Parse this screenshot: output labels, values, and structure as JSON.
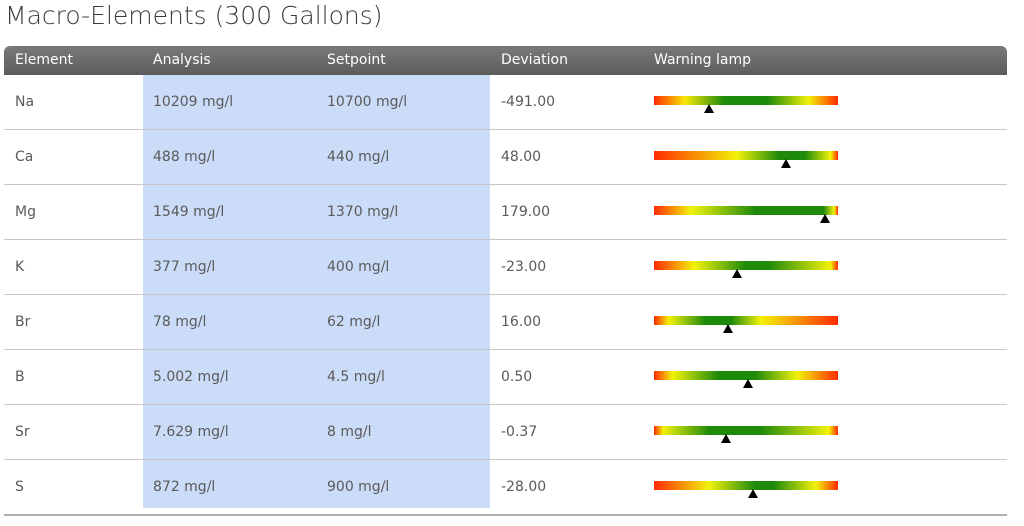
{
  "title": "Macro-Elements (300 Gallons)",
  "columns": {
    "element": "Element",
    "analysis": "Analysis",
    "setpoint": "Setpoint",
    "deviation": "Deviation",
    "warning": "Warning lamp"
  },
  "colors": {
    "red": "#ff2a00",
    "orange": "#ff8c00",
    "yellow": "#f2f20a",
    "green": "#1e8a0a",
    "header": "#666666",
    "highlight": "#cbdcf8"
  },
  "rows": [
    {
      "element": "Na",
      "analysis": "10209 mg/l",
      "setpoint": "10700 mg/l",
      "deviation": "-491.00",
      "marker": 0.3,
      "gradient": "linear-gradient(to right,#ff2a00 0%,#f6e80a 17%,#1e8a0a 38%,#1e8a0a 62%,#f2f20a 84%,#ff2a00 100%)"
    },
    {
      "element": "Ca",
      "analysis": "488 mg/l",
      "setpoint": "440 mg/l",
      "deviation": "48.00",
      "marker": 0.72,
      "gradient": "linear-gradient(to right,#ff2a00 0%,#f2f20a 45%,#1e8a0a 68%,#1e8a0a 82%,#f2f20a 96%,#ff2a00 100%)"
    },
    {
      "element": "Mg",
      "analysis": "1549 mg/l",
      "setpoint": "1370 mg/l",
      "deviation": "179.00",
      "marker": 0.93,
      "gradient": "linear-gradient(to right,#ff2a00 0%,#f2f20a 20%,#1e8a0a 55%,#1e8a0a 92%,#f2f20a 98%,#ff2a00 100%)"
    },
    {
      "element": "K",
      "analysis": "377 mg/l",
      "setpoint": "400 mg/l",
      "deviation": "-23.00",
      "marker": 0.45,
      "gradient": "linear-gradient(to right,#ff2a00 0%,#f2f20a 22%,#1e8a0a 50%,#1e8a0a 62%,#f2f20a 96%,#ff2a00 100%)"
    },
    {
      "element": "Br",
      "analysis": "78 mg/l",
      "setpoint": "62 mg/l",
      "deviation": "16.00",
      "marker": 0.4,
      "gradient": "linear-gradient(to right,#ff2a00 0%,#f2f20a 8%,#1e8a0a 28%,#1e8a0a 42%,#f2f20a 58%,#ff2a00 100%)"
    },
    {
      "element": "B",
      "analysis": "5.002 mg/l",
      "setpoint": "4.5 mg/l",
      "deviation": "0.50",
      "marker": 0.51,
      "gradient": "linear-gradient(to right,#ff2a00 0%,#f2f20a 10%,#1e8a0a 35%,#1e8a0a 55%,#f2f20a 78%,#ff2a00 100%)"
    },
    {
      "element": "Sr",
      "analysis": "7.629 mg/l",
      "setpoint": "8 mg/l",
      "deviation": "-0.37",
      "marker": 0.39,
      "gradient": "linear-gradient(to right,#ff2a00 0%,#f2f20a 5%,#1e8a0a 30%,#1e8a0a 58%,#f2f20a 95%,#ff2a00 100%)"
    },
    {
      "element": "S",
      "analysis": "872 mg/l",
      "setpoint": "900 mg/l",
      "deviation": "-28.00",
      "marker": 0.54,
      "gradient": "linear-gradient(to right,#ff2a00 0%,#f2f20a 30%,#1e8a0a 55%,#1e8a0a 65%,#f2f20a 88%,#ff2a00 100%)"
    }
  ]
}
